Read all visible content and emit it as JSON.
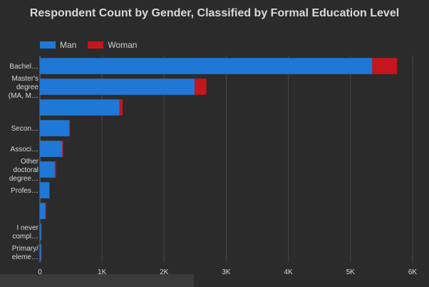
{
  "chart_data": {
    "type": "bar",
    "orientation": "horizontal",
    "stacked": true,
    "title": "Respondent Count by Gender, Classified by Formal Education Level",
    "legend": {
      "position": "top-left"
    },
    "grid": true,
    "xlabel": "",
    "ylabel": "",
    "xlim": [
      0,
      6000
    ],
    "xticks": [
      "0",
      "1K",
      "2K",
      "3K",
      "4K",
      "5K",
      "6K"
    ],
    "categories": [
      [
        "Bachel…"
      ],
      [
        "Master's",
        "degree",
        "(MA, M…"
      ],
      [
        ""
      ],
      [
        "Secon…"
      ],
      [
        "Associ…"
      ],
      [
        "Other",
        "doctoral",
        "degree…"
      ],
      [
        "Profes…"
      ],
      [
        ""
      ],
      [
        "I never",
        "compl…"
      ],
      [
        "Primary/",
        "eleme…"
      ]
    ],
    "series": [
      {
        "name": "Man",
        "color": "#1f78d6",
        "values": [
          5350,
          2490,
          1280,
          470,
          360,
          240,
          150,
          90,
          20,
          20
        ]
      },
      {
        "name": "Woman",
        "color": "#c4161c",
        "values": [
          400,
          190,
          50,
          15,
          15,
          20,
          5,
          3,
          3,
          3
        ]
      }
    ]
  }
}
